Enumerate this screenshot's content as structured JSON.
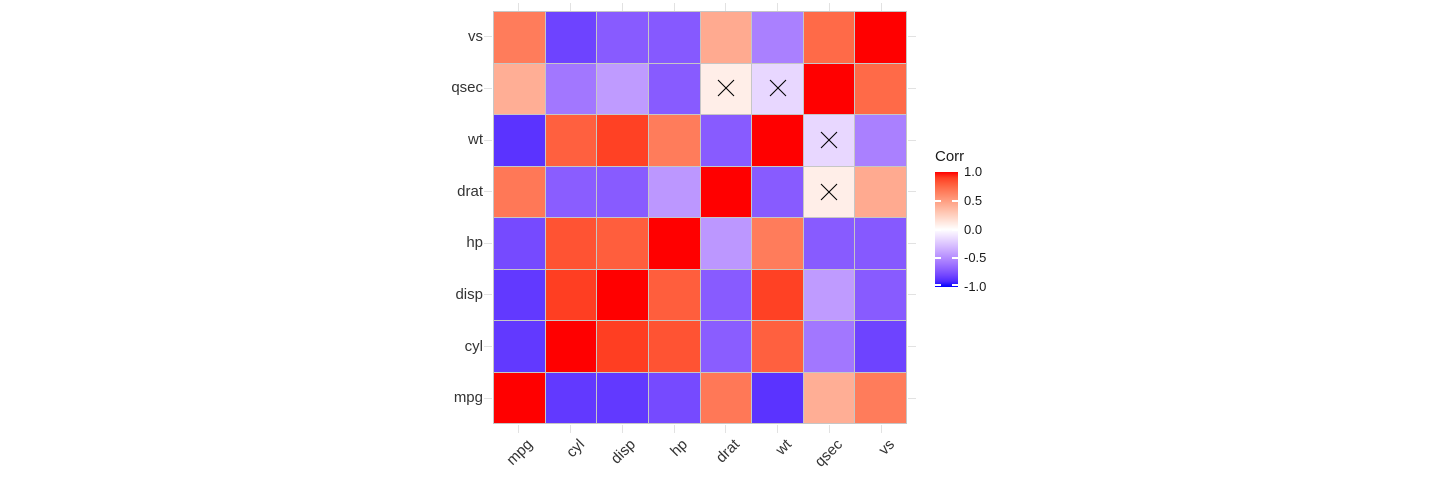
{
  "chart_data": {
    "type": "heatmap",
    "title": "",
    "legend_title": "Corr",
    "legend_position": "right",
    "legend_ticks": [
      {
        "label": "1.0",
        "value": 1.0
      },
      {
        "label": "0.5",
        "value": 0.5
      },
      {
        "label": "0.0",
        "value": 0.0
      },
      {
        "label": "-0.5",
        "value": -0.5
      },
      {
        "label": "-1.0",
        "value": -1.0
      }
    ],
    "x_categories": [
      "mpg",
      "cyl",
      "disp",
      "hp",
      "drat",
      "wt",
      "qsec",
      "vs"
    ],
    "y_categories_top_to_bottom": [
      "vs",
      "qsec",
      "wt",
      "drat",
      "hp",
      "disp",
      "cyl",
      "mpg"
    ],
    "matrix_rows_top_to_bottom": [
      [
        0.66,
        -0.81,
        -0.71,
        -0.72,
        0.44,
        -0.55,
        0.74,
        1.0
      ],
      [
        0.42,
        -0.59,
        -0.43,
        -0.71,
        0.09,
        -0.17,
        1.0,
        0.74
      ],
      [
        -0.87,
        0.78,
        0.89,
        0.66,
        -0.71,
        1.0,
        -0.17,
        -0.55
      ],
      [
        0.68,
        -0.7,
        -0.71,
        -0.45,
        1.0,
        -0.71,
        0.09,
        0.44
      ],
      [
        -0.78,
        0.83,
        0.79,
        1.0,
        -0.45,
        0.66,
        -0.71,
        -0.72
      ],
      [
        -0.85,
        0.9,
        1.0,
        0.79,
        -0.71,
        0.89,
        -0.43,
        -0.71
      ],
      [
        -0.85,
        1.0,
        0.9,
        0.83,
        -0.7,
        0.78,
        -0.59,
        -0.81
      ],
      [
        1.0,
        -0.85,
        -0.85,
        -0.78,
        0.68,
        -0.87,
        0.42,
        0.66
      ]
    ],
    "insignificant_marks": [
      {
        "row": "qsec",
        "col": "drat"
      },
      {
        "row": "qsec",
        "col": "wt"
      },
      {
        "row": "wt",
        "col": "qsec"
      },
      {
        "row": "drat",
        "col": "qsec"
      }
    ],
    "colorscale": {
      "low": "#0000FF",
      "mid": "#FFFFFF",
      "high": "#FF0000",
      "limits": [
        -1,
        1
      ]
    },
    "axis_range": {
      "x": [
        0,
        8
      ],
      "y": [
        0,
        8
      ]
    },
    "grid": true
  },
  "colors": {
    "background": "#ffffff",
    "tile_border": "#c6c6c6",
    "axis_text": "#333333",
    "legend_text": "#1a1a1a",
    "grid_stub": "#e2e2e2",
    "cross_mark": "#000000"
  }
}
